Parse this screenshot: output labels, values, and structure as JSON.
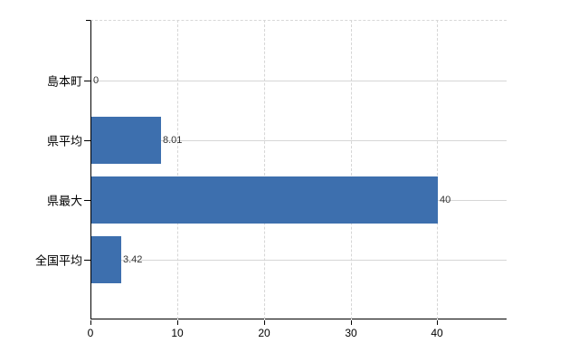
{
  "chart_data": {
    "type": "bar",
    "orientation": "horizontal",
    "title": "",
    "xlabel": "",
    "ylabel": "",
    "categories": [
      "島本町",
      "県平均",
      "県最大",
      "全国平均"
    ],
    "values": [
      0,
      8.01,
      40,
      3.42
    ],
    "value_labels": [
      "0",
      "8.01",
      "40",
      "3.42"
    ],
    "x_ticks": [
      0,
      10,
      20,
      30,
      40
    ],
    "xlim": [
      0,
      48
    ],
    "grid": true,
    "legend": false,
    "bar_color": "#3d6fae",
    "axis_color": "#000000",
    "gridline_color": "#d6d6d6",
    "tick_label_color": "#000000",
    "value_label_color": "#333333",
    "background_color": "#ffffff"
  }
}
